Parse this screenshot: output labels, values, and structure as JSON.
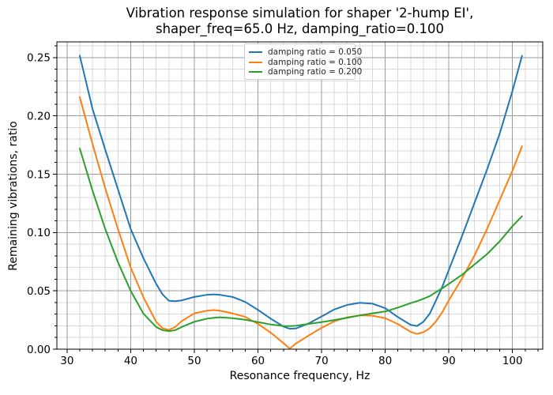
{
  "chart_data": {
    "type": "line",
    "title": "Vibration response simulation for shaper '2-hump EI', shaper_freq=65.0 Hz, damping_ratio=0.100",
    "title_line1": "Vibration response simulation for shaper '2-hump EI',",
    "title_line2": "shaper_freq=65.0 Hz, damping_ratio=0.100",
    "xlabel": "Resonance frequency, Hz",
    "ylabel": "Remaining vibrations, ratio",
    "xlim": [
      28.4,
      104.75
    ],
    "ylim": [
      0,
      0.2634
    ],
    "x_major_ticks": [
      30,
      40,
      50,
      60,
      70,
      80,
      90,
      100
    ],
    "x_minor_step": 2,
    "y_major_ticks": [
      0.0,
      0.05,
      0.1,
      0.15,
      0.2,
      0.25
    ],
    "y_minor_step": 0.01,
    "grid": "both",
    "grid_major_color": "#9b9b9b",
    "grid_minor_color": "#d9d9d9",
    "legend_position": "upper center",
    "x": [
      32,
      34,
      36,
      38,
      40,
      42,
      44,
      45,
      46,
      47,
      48,
      50,
      52,
      53,
      54,
      56,
      58,
      60,
      62,
      64,
      65,
      66,
      68,
      70,
      72,
      74,
      76,
      78,
      80,
      82,
      84,
      85,
      86,
      87,
      88,
      89,
      90,
      92,
      94,
      96,
      98,
      100,
      101.5
    ],
    "series": [
      {
        "name": "damping ratio = 0.050",
        "color": "#1f77b4",
        "values": [
          0.2515,
          0.206,
          0.171,
          0.137,
          0.103,
          0.078,
          0.056,
          0.047,
          0.0415,
          0.0411,
          0.0418,
          0.0448,
          0.0466,
          0.047,
          0.0466,
          0.0448,
          0.0405,
          0.0337,
          0.0262,
          0.0194,
          0.0175,
          0.0178,
          0.0222,
          0.028,
          0.0341,
          0.0379,
          0.0398,
          0.039,
          0.0352,
          0.0275,
          0.0208,
          0.0199,
          0.0235,
          0.0305,
          0.042,
          0.054,
          0.068,
          0.096,
          0.125,
          0.154,
          0.185,
          0.2215,
          0.2515
        ]
      },
      {
        "name": "damping ratio = 0.100",
        "color": "#ff7f0e",
        "values": [
          0.216,
          0.176,
          0.138,
          0.103,
          0.07,
          0.0445,
          0.0235,
          0.018,
          0.0165,
          0.019,
          0.024,
          0.0307,
          0.033,
          0.0335,
          0.033,
          0.0307,
          0.0277,
          0.0217,
          0.0142,
          0.0052,
          0.0005,
          0.005,
          0.0118,
          0.0183,
          0.0239,
          0.0273,
          0.029,
          0.0287,
          0.0266,
          0.0215,
          0.0148,
          0.0131,
          0.0145,
          0.018,
          0.024,
          0.032,
          0.042,
          0.06,
          0.08,
          0.103,
          0.128,
          0.153,
          0.174
        ]
      },
      {
        "name": "damping ratio = 0.200",
        "color": "#2ca02c",
        "values": [
          0.172,
          0.136,
          0.103,
          0.0745,
          0.05,
          0.0305,
          0.019,
          0.0163,
          0.0155,
          0.0163,
          0.019,
          0.0235,
          0.0262,
          0.0268,
          0.0273,
          0.0266,
          0.0252,
          0.0232,
          0.0212,
          0.0199,
          0.0198,
          0.0201,
          0.0217,
          0.0232,
          0.025,
          0.0269,
          0.0289,
          0.0307,
          0.0323,
          0.0357,
          0.0395,
          0.0412,
          0.0432,
          0.0455,
          0.049,
          0.0523,
          0.056,
          0.0635,
          0.0725,
          0.0815,
          0.0925,
          0.1055,
          0.114
        ]
      }
    ]
  }
}
